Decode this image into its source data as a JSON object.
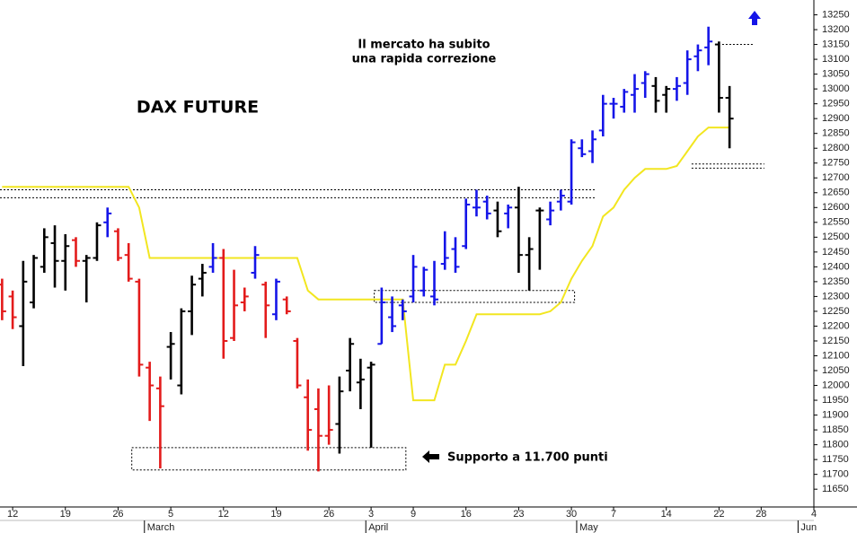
{
  "chart_data": {
    "type": "ohlc",
    "title": "DAX FUTURE",
    "annotations": [
      "Il mercato ha subito",
      "una rapida correzione"
    ],
    "support_label": "Supporto a 11.700 punti",
    "x": [
      -1,
      0,
      1,
      2,
      3,
      4,
      5,
      6,
      7,
      8,
      9,
      10,
      11,
      12,
      13,
      14,
      15,
      16,
      17,
      18,
      19,
      20,
      21,
      22,
      23,
      24,
      25,
      26,
      27,
      28,
      29,
      30,
      31,
      32,
      33,
      34,
      35,
      36,
      37,
      38,
      39,
      40,
      41,
      42,
      43,
      44,
      45,
      46,
      47,
      48,
      49,
      50,
      51,
      52,
      53,
      54,
      55,
      56,
      57,
      58,
      59,
      60,
      61,
      62,
      63,
      64,
      65,
      66,
      67,
      68
    ],
    "open": [
      12340,
      12300,
      12200,
      12280,
      12400,
      12480,
      12420,
      12490,
      12420,
      12430,
      12550,
      12520,
      12440,
      12350,
      12060,
      11990,
      12130,
      12000,
      12250,
      12360,
      12400,
      12430,
      12160,
      12280,
      12380,
      12340,
      12240,
      12290,
      12150,
      11960,
      11920,
      11830,
      11870,
      12050,
      12010,
      12060,
      12140,
      12230,
      12270,
      12300,
      12320,
      12300,
      12410,
      12460,
      12470,
      12600,
      12620,
      12590,
      12580,
      12600,
      12440,
      12590,
      12560,
      12620,
      12620,
      12800,
      12790,
      12860,
      12950,
      12940,
      12980,
      13020,
      13010,
      12980,
      13000,
      13020,
      13110,
      13140,
      13150,
      12970
    ],
    "high": [
      12360,
      12320,
      12420,
      12440,
      12530,
      12540,
      12510,
      12500,
      12440,
      12550,
      12600,
      12530,
      12480,
      12360,
      12080,
      12030,
      12180,
      12260,
      12370,
      12410,
      12480,
      12460,
      12390,
      12330,
      12470,
      12350,
      12360,
      12300,
      12160,
      12020,
      11990,
      12000,
      12030,
      12160,
      12090,
      12080,
      12330,
      12300,
      12290,
      12440,
      12400,
      12420,
      12520,
      12500,
      12630,
      12660,
      12640,
      12620,
      12610,
      12670,
      12500,
      12600,
      12620,
      12660,
      12830,
      12830,
      12860,
      12980,
      12970,
      13000,
      13050,
      13060,
      13040,
      13010,
      13040,
      13130,
      13150,
      13210,
      13160,
      13010
    ],
    "low": [
      12220,
      12190,
      12065,
      12260,
      12380,
      12330,
      12320,
      12400,
      12280,
      12420,
      12500,
      12420,
      12350,
      12030,
      11880,
      11720,
      12020,
      11970,
      12170,
      12300,
      12380,
      12090,
      12150,
      12250,
      12360,
      12160,
      12220,
      12240,
      11990,
      11780,
      11710,
      11800,
      11770,
      11980,
      11920,
      11790,
      12140,
      12180,
      12220,
      12280,
      12300,
      12270,
      12390,
      12380,
      12460,
      12570,
      12560,
      12500,
      12530,
      12380,
      12320,
      12390,
      12540,
      12590,
      12610,
      12770,
      12750,
      12840,
      12900,
      12920,
      12920,
      12970,
      12920,
      12920,
      12960,
      12980,
      13060,
      13080,
      12920,
      12800
    ],
    "close": [
      12250,
      12230,
      12350,
      12430,
      12500,
      12420,
      12470,
      12420,
      12430,
      12540,
      12580,
      12430,
      12360,
      12070,
      12000,
      11930,
      12140,
      12250,
      12340,
      12380,
      12430,
      12150,
      12270,
      12300,
      12440,
      12270,
      12350,
      12250,
      12000,
      11850,
      11830,
      11850,
      11980,
      12140,
      12020,
      12070,
      12280,
      12200,
      12250,
      12400,
      12390,
      12290,
      12430,
      12400,
      12610,
      12600,
      12580,
      12520,
      12600,
      12440,
      12460,
      12590,
      12590,
      12640,
      12820,
      12780,
      12830,
      12950,
      12950,
      12990,
      13000,
      13050,
      12960,
      13000,
      13010,
      13100,
      13130,
      13160,
      12970,
      12900
    ],
    "colors": [
      "#e31b1b",
      "#e31b1b",
      "#000000",
      "#000000",
      "#000000",
      "#000000",
      "#000000",
      "#e31b1b",
      "#000000",
      "#000000",
      "#1515e8",
      "#e31b1b",
      "#e31b1b",
      "#e31b1b",
      "#e31b1b",
      "#e31b1b",
      "#000000",
      "#000000",
      "#000000",
      "#000000",
      "#1515e8",
      "#e31b1b",
      "#e31b1b",
      "#e31b1b",
      "#1515e8",
      "#e31b1b",
      "#1515e8",
      "#e31b1b",
      "#e31b1b",
      "#e31b1b",
      "#e31b1b",
      "#e31b1b",
      "#000000",
      "#000000",
      "#000000",
      "#000000",
      "#1515e8",
      "#1515e8",
      "#1515e8",
      "#1515e8",
      "#1515e8",
      "#1515e8",
      "#1515e8",
      "#1515e8",
      "#1515e8",
      "#1515e8",
      "#1515e8",
      "#000000",
      "#1515e8",
      "#000000",
      "#000000",
      "#000000",
      "#1515e8",
      "#1515e8",
      "#1515e8",
      "#1515e8",
      "#1515e8",
      "#1515e8",
      "#1515e8",
      "#1515e8",
      "#1515e8",
      "#1515e8",
      "#000000",
      "#000000",
      "#1515e8",
      "#1515e8",
      "#1515e8",
      "#1515e8",
      "#000000",
      "#000000"
    ],
    "trail": {
      "color": "#f2e620",
      "values": [
        12670,
        12670,
        12670,
        12670,
        12670,
        12670,
        12670,
        12670,
        12670,
        12670,
        12670,
        12670,
        12670,
        12600,
        12430,
        12430,
        12430,
        12430,
        12430,
        12430,
        12430,
        12430,
        12430,
        12430,
        12430,
        12430,
        12430,
        12430,
        12430,
        12320,
        12290,
        12290,
        12290,
        12290,
        12290,
        12290,
        12290,
        12290,
        12290,
        11950,
        11950,
        11950,
        12070,
        12070,
        12150,
        12240,
        12240,
        12240,
        12240,
        12240,
        12240,
        12240,
        12250,
        12280,
        12360,
        12420,
        12470,
        12570,
        12600,
        12660,
        12700,
        12730,
        12730,
        12730,
        12740,
        12790,
        12840,
        12870,
        12870,
        12870
      ]
    },
    "xlim": [
      -1.2,
      76
    ],
    "ylim": [
      11590,
      13300
    ],
    "xticks": [
      {
        "value": 0,
        "label": "12"
      },
      {
        "value": 5,
        "label": "19"
      },
      {
        "value": 10,
        "label": "26"
      },
      {
        "value": 15,
        "label": "5"
      },
      {
        "value": 20,
        "label": "12"
      },
      {
        "value": 25,
        "label": "19"
      },
      {
        "value": 30,
        "label": "26"
      },
      {
        "value": 34,
        "label": "3"
      },
      {
        "value": 38,
        "label": "9"
      },
      {
        "value": 43,
        "label": "16"
      },
      {
        "value": 48,
        "label": "23"
      },
      {
        "value": 53,
        "label": "30"
      },
      {
        "value": 57,
        "label": "7"
      },
      {
        "value": 62,
        "label": "14"
      },
      {
        "value": 67,
        "label": "22"
      },
      {
        "value": 71,
        "label": "28"
      },
      {
        "value": 76,
        "label": "4"
      }
    ],
    "months": [
      {
        "value": 13,
        "label": "March"
      },
      {
        "value": 34,
        "label": "April"
      },
      {
        "value": 54,
        "label": "May"
      },
      {
        "value": 75,
        "label": "Jun"
      }
    ],
    "yticks": [
      11650,
      11700,
      11750,
      11800,
      11850,
      11900,
      11950,
      12000,
      12050,
      12100,
      12150,
      12200,
      12250,
      12300,
      12350,
      12400,
      12450,
      12500,
      12550,
      12600,
      12650,
      12700,
      12750,
      12800,
      12850,
      12900,
      12950,
      13000,
      13050,
      13100,
      13150,
      13200,
      13250
    ],
    "levels": [
      {
        "x": [
          -1.2,
          55.3
        ],
        "y": 12660
      },
      {
        "x": [
          -1.2,
          55.3
        ],
        "y": 12633
      },
      {
        "x": [
          67.3,
          70.2
        ],
        "y": 13150
      },
      {
        "x": [
          64.4,
          71.3
        ],
        "y": 12747
      },
      {
        "x": [
          64.4,
          71.3
        ],
        "y": 12733
      }
    ],
    "boxes": [
      {
        "x": [
          34.3,
          53.3
        ],
        "y": [
          12280,
          12320
        ]
      },
      {
        "x": [
          11.3,
          37.3
        ],
        "y": [
          11715,
          11790
        ]
      }
    ]
  }
}
